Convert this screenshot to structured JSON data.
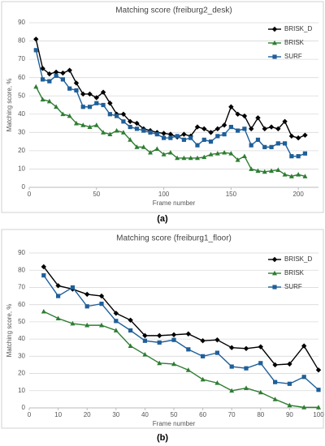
{
  "chart_data": [
    {
      "type": "line",
      "title": "Matching score (freiburg2_desk)",
      "xlabel": "Frame number",
      "ylabel": "Matching score, %",
      "caption": "(a)",
      "x": [
        5,
        10,
        15,
        20,
        25,
        30,
        35,
        40,
        45,
        50,
        55,
        60,
        65,
        70,
        75,
        80,
        85,
        90,
        95,
        100,
        105,
        110,
        115,
        120,
        125,
        130,
        135,
        140,
        145,
        150,
        155,
        160,
        165,
        170,
        175,
        180,
        185,
        190,
        195,
        200,
        205
      ],
      "series": [
        {
          "name": "BRISK_D",
          "color": "#000000",
          "marker": "diamond",
          "values": [
            81,
            65,
            62,
            63,
            62.5,
            64,
            57,
            51,
            51,
            49,
            52,
            46,
            40,
            40,
            36,
            35,
            32,
            31,
            30,
            29.5,
            29,
            27.5,
            29,
            28,
            33,
            32,
            30,
            32,
            34,
            44,
            40,
            39,
            32,
            38,
            32,
            33,
            32,
            36,
            28,
            27,
            28.5
          ]
        },
        {
          "name": "BRISK",
          "color": "#2e7d32",
          "marker": "triangle",
          "values": [
            55,
            48,
            47,
            44,
            40,
            39,
            35,
            34,
            33,
            34,
            30,
            29,
            31,
            30,
            26,
            22,
            22,
            19,
            21,
            18,
            19,
            16,
            16,
            16,
            16,
            16.5,
            18,
            18.5,
            19,
            18.5,
            15,
            17,
            10,
            9,
            8.5,
            9,
            9.5,
            7,
            6,
            7,
            6
          ]
        },
        {
          "name": "SURF",
          "color": "#1f5f99",
          "marker": "square",
          "values": [
            75,
            59,
            58,
            61,
            59,
            54,
            53,
            44,
            44,
            46,
            45,
            40,
            39,
            36,
            33,
            32,
            31,
            30,
            29,
            27,
            27,
            28,
            26,
            27,
            23,
            26,
            25,
            28,
            29,
            33,
            31,
            32,
            23,
            26,
            22,
            22,
            24,
            24,
            17,
            17,
            18.5
          ]
        }
      ],
      "xlim": [
        0,
        215
      ],
      "xticks": [
        0,
        50,
        100,
        150,
        200
      ],
      "ylim": [
        0,
        90
      ],
      "yticks": [
        0,
        10,
        20,
        30,
        40,
        50,
        60,
        70,
        80,
        90
      ],
      "grid": true,
      "legend": "upper right"
    },
    {
      "type": "line",
      "title": "Matching score (freiburg1_floor)",
      "xlabel": "Frame number",
      "ylabel": "Matching score, %",
      "caption": "(b)",
      "x": [
        5,
        10,
        15,
        20,
        25,
        30,
        35,
        40,
        45,
        50,
        55,
        60,
        65,
        70,
        75,
        80,
        85,
        90,
        95,
        100
      ],
      "series": [
        {
          "name": "BRISK_D",
          "color": "#000000",
          "marker": "diamond",
          "values": [
            82,
            71,
            69,
            66,
            65,
            55,
            51,
            42,
            42,
            42.5,
            43,
            39,
            39.5,
            35,
            34.5,
            35.5,
            25,
            25.5,
            36,
            22
          ]
        },
        {
          "name": "BRISK",
          "color": "#2e7d32",
          "marker": "triangle",
          "values": [
            56,
            52,
            49,
            48,
            48,
            45,
            36,
            31,
            26,
            25.5,
            22,
            16.5,
            14.5,
            10,
            11.5,
            9,
            5,
            1.5,
            0.3,
            0.3
          ]
        },
        {
          "name": "SURF",
          "color": "#1f5f99",
          "marker": "square",
          "values": [
            77,
            65,
            70,
            59,
            60.5,
            50.5,
            45,
            39,
            38,
            39.5,
            34,
            30,
            32,
            24,
            23,
            26,
            15,
            14,
            18,
            10.5
          ]
        }
      ],
      "xlim": [
        0,
        100
      ],
      "xticks": [
        0,
        10,
        20,
        30,
        40,
        50,
        60,
        70,
        80,
        90,
        100
      ],
      "ylim": [
        0,
        90
      ],
      "yticks": [
        0,
        10,
        20,
        30,
        40,
        50,
        60,
        70,
        80,
        90
      ],
      "grid": true,
      "legend": "upper right"
    }
  ]
}
